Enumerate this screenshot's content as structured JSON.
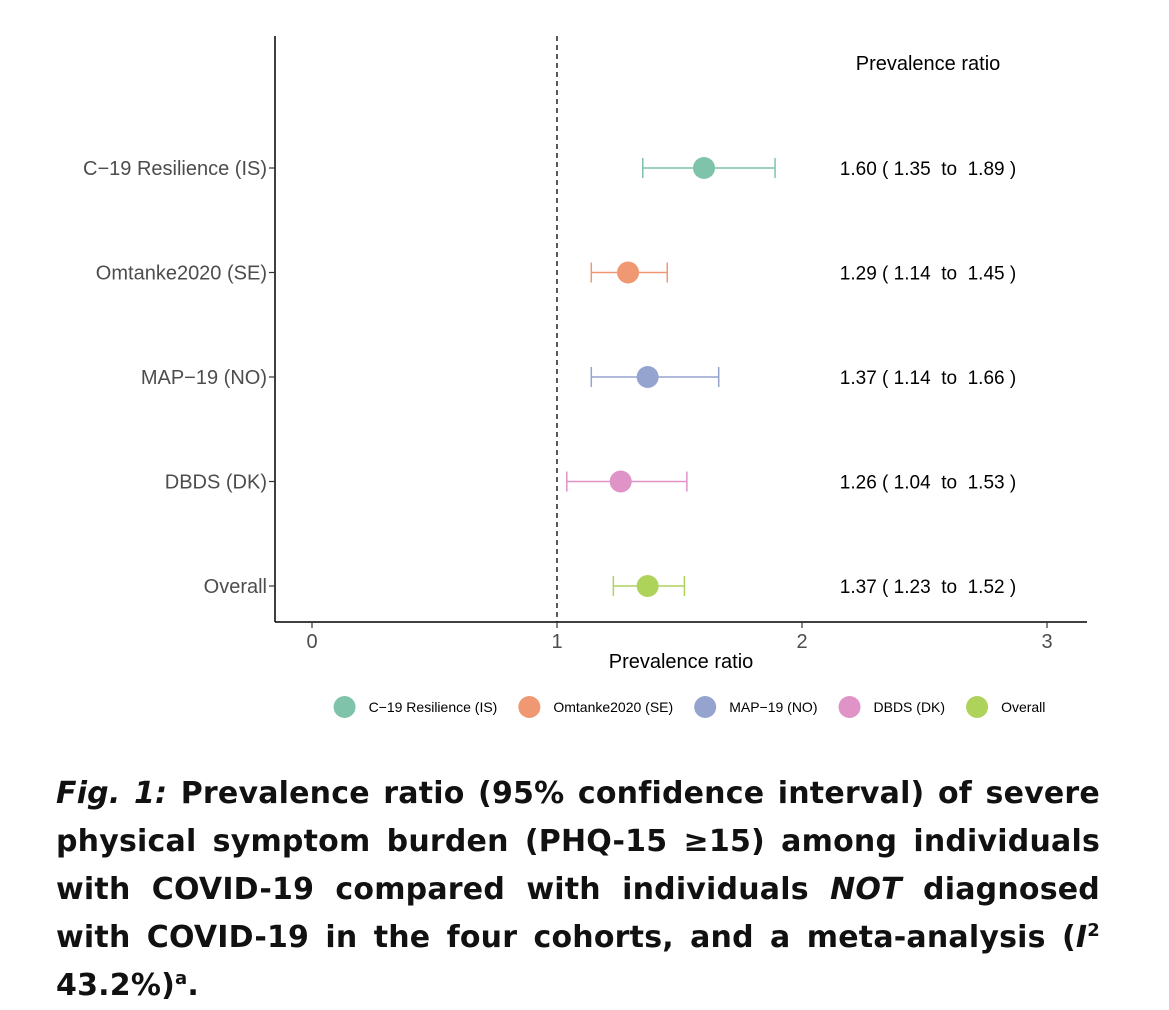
{
  "chart_data": {
    "type": "forest",
    "annotation_header": "Prevalence ratio",
    "xlabel": "Prevalence ratio",
    "xlim": [
      -0.15,
      3.15
    ],
    "x_ticks": [
      "0",
      "1",
      "2",
      "3"
    ],
    "reference_line": 1,
    "rows": [
      {
        "label": "C−19 Resilience (IS)",
        "estimate": 1.6,
        "lower": 1.35,
        "upper": 1.89,
        "color": "#7fc4aa",
        "ci_text": "1.60 ( 1.35  to  1.89 )"
      },
      {
        "label": "Omtanke2020 (SE)",
        "estimate": 1.29,
        "lower": 1.14,
        "upper": 1.45,
        "color": "#ef9872",
        "ci_text": "1.29 ( 1.14  to  1.45 )"
      },
      {
        "label": "MAP−19 (NO)",
        "estimate": 1.37,
        "lower": 1.14,
        "upper": 1.66,
        "color": "#95a4cf",
        "ci_text": "1.37 ( 1.14  to  1.66 )"
      },
      {
        "label": "DBDS (DK)",
        "estimate": 1.26,
        "lower": 1.04,
        "upper": 1.53,
        "color": "#df93c6",
        "ci_text": "1.26 ( 1.04  to  1.53 )"
      },
      {
        "label": "Overall",
        "estimate": 1.37,
        "lower": 1.23,
        "upper": 1.52,
        "color": "#aed35b",
        "ci_text": "1.37 ( 1.23  to  1.52 )"
      }
    ],
    "legend": {
      "position": "bottom",
      "entries": [
        {
          "label": "C−19 Resilience (IS)",
          "color": "#7fc4aa"
        },
        {
          "label": "Omtanke2020 (SE)",
          "color": "#ef9872"
        },
        {
          "label": "MAP−19 (NO)",
          "color": "#95a4cf"
        },
        {
          "label": "DBDS (DK)",
          "color": "#df93c6"
        },
        {
          "label": "Overall",
          "color": "#aed35b"
        }
      ]
    }
  },
  "caption": {
    "lead": "Fig. 1:",
    "part1": "Prevalence ratio (95% confidence interval) of severe physical symptom burden (PHQ-15 ≥15) among individuals with COVID-19 compared with individuals",
    "not": "NOT",
    "part2": "diagnosed with COVID-19 in the four cohorts, and a meta-analysis (",
    "i": "I",
    "i_sup": "2",
    "part3": "43.2%)",
    "end_sup": "a",
    "period": "."
  }
}
